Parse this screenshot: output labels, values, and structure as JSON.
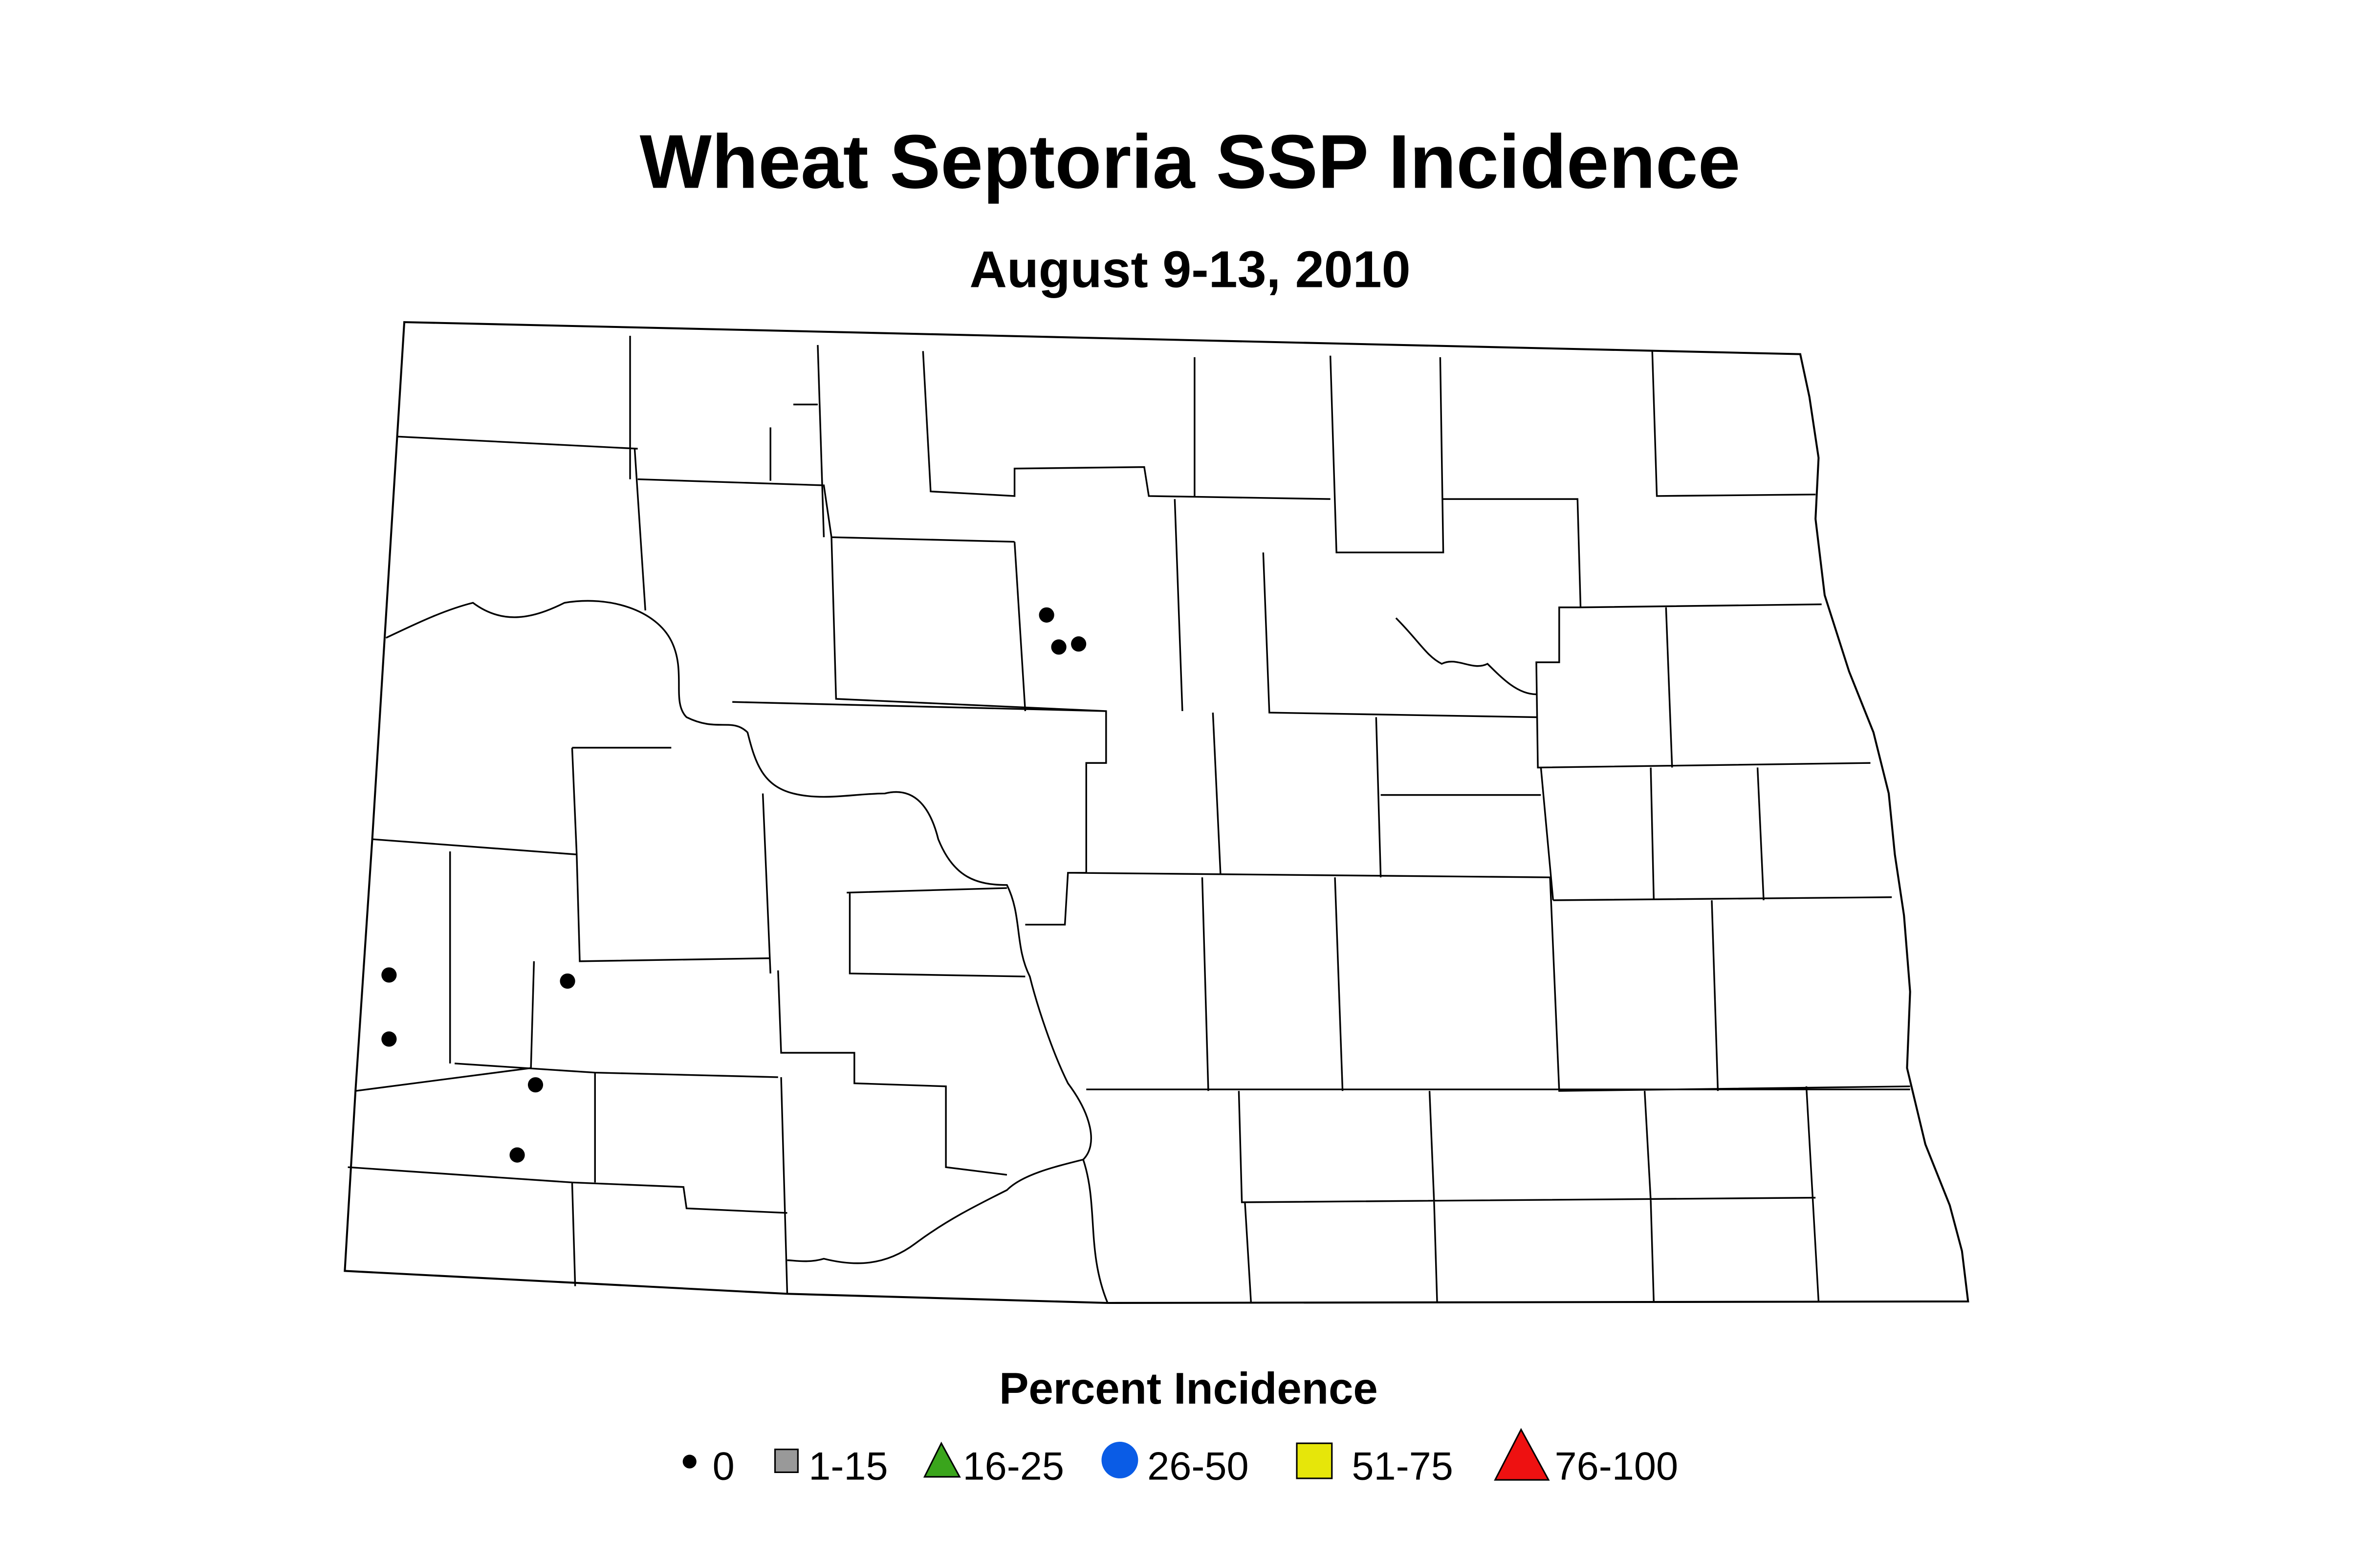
{
  "header": {
    "title": "Wheat Septoria SSP Incidence",
    "subtitle": "August 9-13, 2010"
  },
  "legend": {
    "title": "Percent Incidence",
    "items": [
      {
        "label": "0"
      },
      {
        "label": "1-15"
      },
      {
        "label": "16-25"
      },
      {
        "label": "26-50"
      },
      {
        "label": "51-75"
      },
      {
        "label": "76-100"
      }
    ]
  }
}
